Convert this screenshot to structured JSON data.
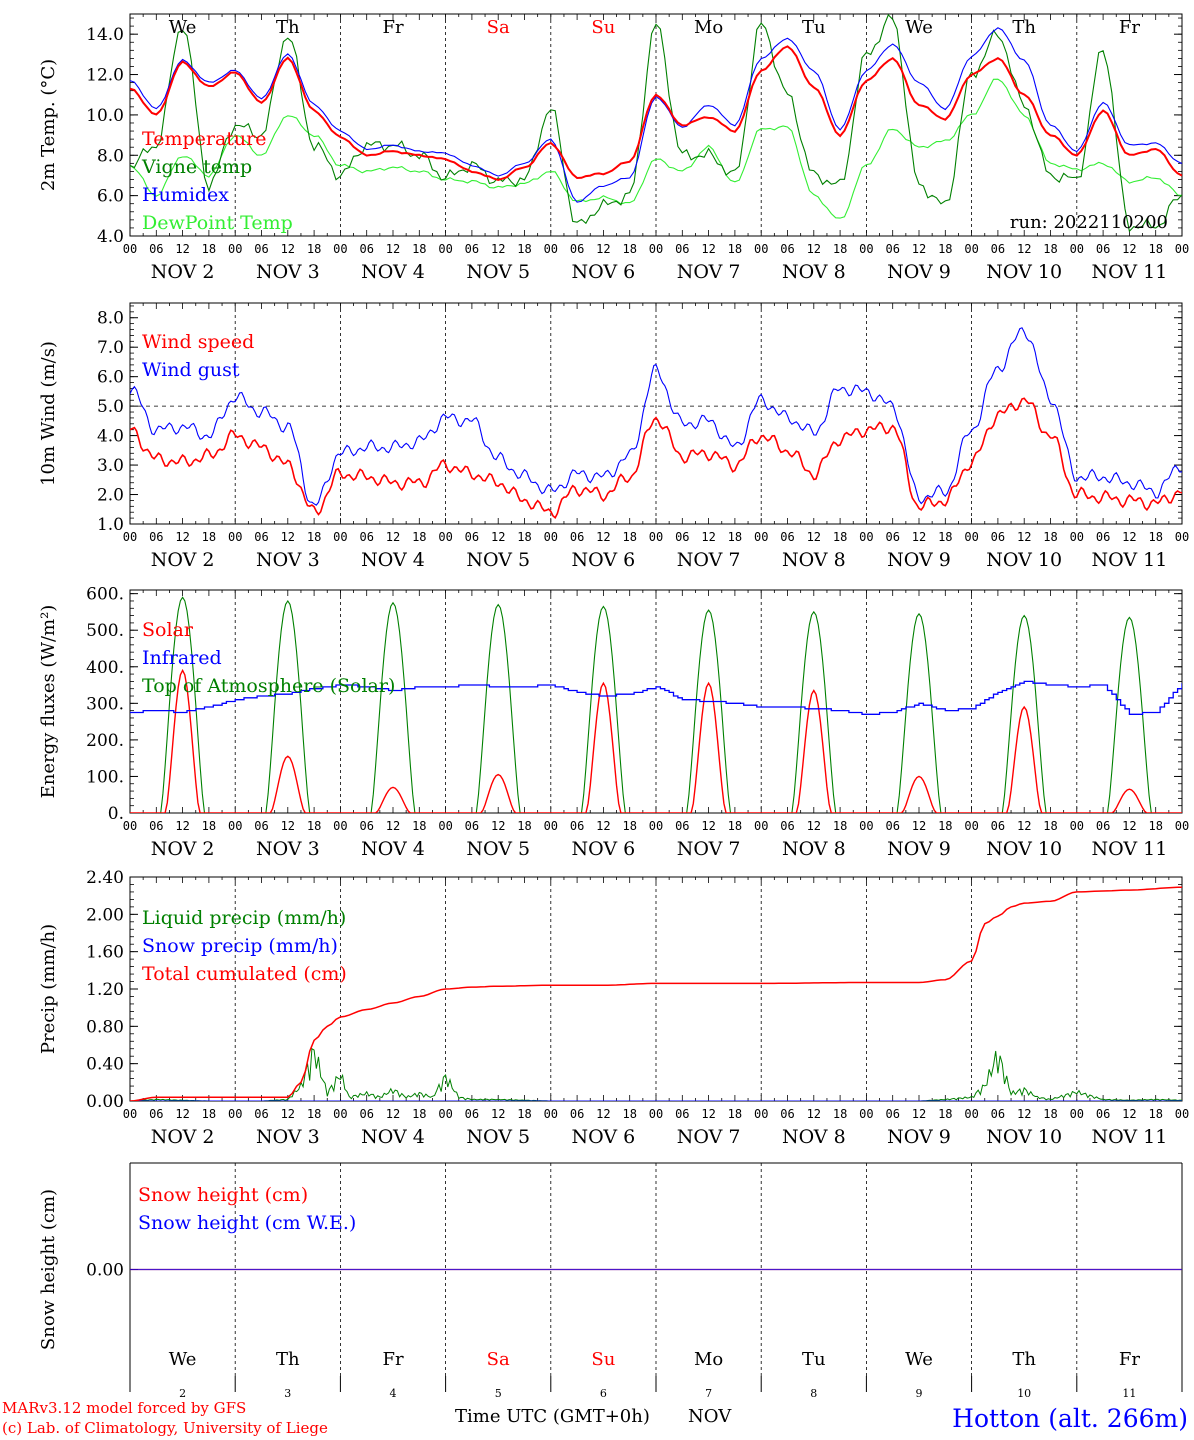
{
  "colors": {
    "temperature": "#ff0000",
    "vigne": "#008000",
    "humidex": "#0000ff",
    "dewpoint": "#33ee33",
    "wind_speed": "#ff0000",
    "wind_gust": "#0000ff",
    "solar": "#ff0000",
    "infrared": "#0000ff",
    "toa": "#008000",
    "liquid": "#008000",
    "snowprecip": "#0000ff",
    "total": "#ff0000",
    "snow_cm": "#ff0000",
    "snow_we": "#0000ff",
    "weekday": "#000000",
    "weekend": "#ff0000",
    "station": "#0000ff",
    "credits": "#ff0000"
  },
  "days": {
    "weekday_labels": [
      "We",
      "Th",
      "Fr",
      "Sa",
      "Su",
      "Mo",
      "Tu",
      "We",
      "Th",
      "Fr"
    ],
    "weekend_flags": [
      false,
      false,
      false,
      true,
      true,
      false,
      false,
      false,
      false,
      false
    ],
    "date_labels": [
      "NOV  2",
      "NOV  3",
      "NOV  4",
      "NOV  5",
      "NOV  6",
      "NOV  7",
      "NOV  8",
      "NOV  9",
      "NOV 10",
      "NOV 11"
    ],
    "day_numbers": [
      "2",
      "3",
      "4",
      "5",
      "6",
      "7",
      "8",
      "9",
      "10",
      "11"
    ],
    "hour_ticks": [
      "00",
      "06",
      "12",
      "18"
    ],
    "final_tick": "00"
  },
  "footer": {
    "credit_line1": "MARv3.12 model forced by GFS",
    "credit_line2": "(c) Lab. of Climatology, University of Liege",
    "xaxis_label": "Time UTC (GMT+0h)",
    "month": "NOV",
    "station": "Hotton (alt. 266m)"
  },
  "chart_data": [
    {
      "type": "line",
      "ylabel": "2m Temp. (°C)",
      "ylim": [
        4.0,
        15.0
      ],
      "yticks": [
        "4.0",
        "6.0",
        "8.0",
        "10.0",
        "12.0",
        "14.0"
      ],
      "yticks_values": [
        4,
        6,
        8,
        10,
        12,
        14
      ],
      "annotation": "run: 2022110200",
      "x_hours": [
        0,
        6,
        12,
        18,
        24,
        30,
        36,
        42,
        48,
        54,
        60,
        66,
        72,
        78,
        84,
        90,
        96,
        102,
        108,
        114,
        120,
        126,
        132,
        138,
        144,
        150,
        156,
        162,
        168,
        174,
        180,
        186,
        192,
        198,
        204,
        210,
        216,
        222,
        228,
        234,
        240
      ],
      "series": [
        {
          "name": "Temperature",
          "color_key": "temperature",
          "values": [
            11.3,
            10.0,
            12.6,
            11.4,
            12.1,
            10.6,
            12.8,
            10.2,
            8.9,
            8.0,
            8.2,
            8.0,
            7.8,
            7.2,
            6.8,
            7.4,
            8.6,
            6.9,
            7.1,
            7.7,
            11.0,
            9.5,
            9.9,
            9.2,
            12.2,
            13.4,
            11.4,
            9.0,
            11.7,
            12.8,
            10.5,
            9.8,
            12.0,
            12.8,
            11.0,
            9.0,
            8.0,
            10.2,
            8.0,
            8.3,
            7.0
          ]
        },
        {
          "name": "Vigne temp",
          "color_key": "vigne",
          "values": [
            7.5,
            8.5,
            14.5,
            6.5,
            9.5,
            9.0,
            14.0,
            8.5,
            7.0,
            8.5,
            8.5,
            8.0,
            6.9,
            7.5,
            6.7,
            6.8,
            10.3,
            4.5,
            5.5,
            6.0,
            14.5,
            8.0,
            8.0,
            7.0,
            14.5,
            11.0,
            7.0,
            6.5,
            13.0,
            14.8,
            6.5,
            5.5,
            12.0,
            14.0,
            10.5,
            7.0,
            6.8,
            13.3,
            4.5,
            4.5,
            6.0
          ]
        },
        {
          "name": "Humidex",
          "color_key": "humidex",
          "values": [
            11.7,
            10.3,
            12.7,
            11.6,
            12.2,
            10.8,
            13.0,
            10.5,
            9.2,
            8.3,
            8.5,
            8.2,
            8.1,
            7.5,
            7.0,
            7.6,
            8.8,
            5.7,
            6.5,
            6.9,
            10.9,
            9.4,
            10.5,
            9.5,
            12.8,
            13.8,
            12.2,
            9.3,
            12.2,
            13.5,
            11.6,
            10.3,
            12.9,
            14.3,
            12.7,
            9.5,
            8.2,
            10.6,
            8.5,
            8.6,
            7.6
          ]
        },
        {
          "name": "DewPoint Temp",
          "color_key": "dewpoint",
          "values": [
            7.5,
            6.0,
            8.0,
            7.0,
            9.0,
            8.0,
            10.0,
            9.0,
            7.5,
            7.2,
            7.4,
            7.2,
            6.8,
            6.7,
            6.4,
            6.6,
            7.2,
            5.7,
            5.9,
            5.6,
            7.8,
            7.2,
            8.4,
            6.6,
            9.3,
            9.4,
            6.0,
            4.8,
            7.5,
            9.3,
            8.4,
            8.7,
            10.0,
            11.8,
            10.0,
            7.6,
            7.3,
            7.6,
            6.7,
            6.9,
            6.0
          ]
        }
      ]
    },
    {
      "type": "line",
      "ylabel": "10m Wind (m/s)",
      "ylim": [
        1.0,
        8.5
      ],
      "yticks": [
        "1.0",
        "2.0",
        "3.0",
        "4.0",
        "5.0",
        "6.0",
        "7.0",
        "8.0"
      ],
      "yticks_values": [
        1,
        2,
        3,
        4,
        5,
        6,
        7,
        8
      ],
      "reference_line": 5.0,
      "x_hours": [
        0,
        6,
        12,
        18,
        24,
        30,
        36,
        42,
        48,
        54,
        60,
        66,
        72,
        78,
        84,
        90,
        96,
        102,
        108,
        114,
        120,
        126,
        132,
        138,
        144,
        150,
        156,
        162,
        168,
        174,
        180,
        186,
        192,
        198,
        204,
        210,
        216,
        222,
        228,
        234,
        240
      ],
      "series": [
        {
          "name": "Wind speed",
          "color_key": "wind_speed",
          "values": [
            4.2,
            3.2,
            3.1,
            3.3,
            4.0,
            3.6,
            3.0,
            1.4,
            2.7,
            2.6,
            2.4,
            2.4,
            3.0,
            2.7,
            2.4,
            1.8,
            1.4,
            2.2,
            2.0,
            2.6,
            4.6,
            3.3,
            3.4,
            3.0,
            4.0,
            3.5,
            2.7,
            3.9,
            4.2,
            4.3,
            1.6,
            1.8,
            3.1,
            4.7,
            5.2,
            4.0,
            2.0,
            1.9,
            1.8,
            1.7,
            2.1
          ]
        },
        {
          "name": "Wind gust",
          "color_key": "wind_gust",
          "values": [
            5.6,
            4.2,
            4.3,
            4.0,
            5.3,
            4.8,
            4.3,
            1.6,
            3.4,
            3.6,
            3.6,
            3.8,
            4.6,
            4.5,
            3.2,
            2.6,
            2.1,
            2.7,
            2.6,
            3.3,
            6.2,
            4.4,
            4.5,
            3.6,
            5.2,
            4.6,
            4.1,
            5.6,
            5.5,
            5.0,
            1.9,
            2.1,
            4.2,
            6.3,
            7.6,
            5.3,
            2.6,
            2.6,
            2.4,
            2.1,
            3.0
          ]
        }
      ]
    },
    {
      "type": "line",
      "ylabel": "Energy fluxes (W/m²)",
      "ylim": [
        0,
        610
      ],
      "yticks": [
        "0.",
        "100.",
        "200.",
        "300.",
        "400.",
        "500.",
        "600."
      ],
      "yticks_values": [
        0,
        100,
        200,
        300,
        400,
        500,
        600
      ],
      "series": [
        {
          "name": "Solar",
          "color_key": "solar",
          "day_peaks": [
            390,
            155,
            70,
            105,
            355,
            355,
            335,
            100,
            290,
            65
          ]
        },
        {
          "name": "Infrared",
          "color_key": "infrared",
          "x_hours": [
            0,
            6,
            12,
            18,
            24,
            30,
            36,
            42,
            48,
            54,
            60,
            66,
            72,
            78,
            84,
            90,
            96,
            102,
            108,
            114,
            120,
            126,
            132,
            138,
            144,
            150,
            156,
            162,
            168,
            174,
            180,
            186,
            192,
            198,
            204,
            210,
            216,
            222,
            228,
            234,
            240
          ],
          "values": [
            275,
            280,
            275,
            290,
            310,
            320,
            325,
            340,
            350,
            345,
            335,
            345,
            345,
            350,
            345,
            345,
            350,
            330,
            320,
            325,
            345,
            310,
            305,
            300,
            290,
            290,
            285,
            280,
            270,
            275,
            300,
            280,
            285,
            330,
            360,
            350,
            345,
            350,
            270,
            275,
            355
          ]
        },
        {
          "name": "Top of Atmosphere (Solar)",
          "color_key": "toa",
          "day_peaks": [
            590,
            580,
            575,
            570,
            565,
            555,
            550,
            545,
            540,
            535
          ]
        }
      ]
    },
    {
      "type": "line",
      "ylabel": "Precip (mm/h)",
      "ylim": [
        0,
        2.4
      ],
      "yticks": [
        "0.00",
        "0.40",
        "0.80",
        "1.20",
        "1.60",
        "2.00",
        "2.40"
      ],
      "yticks_values": [
        0,
        0.4,
        0.8,
        1.2,
        1.6,
        2.0,
        2.4
      ],
      "series": [
        {
          "name": "Liquid precip (mm/h)",
          "color_key": "liquid",
          "x_hours": [
            0,
            6,
            12,
            18,
            24,
            30,
            36,
            39,
            42,
            45,
            48,
            50,
            54,
            57,
            60,
            63,
            66,
            69,
            72,
            75,
            78,
            84,
            90,
            96,
            108,
            132,
            168,
            180,
            186,
            192,
            195,
            198,
            201,
            204,
            207,
            210,
            216,
            222,
            228,
            234,
            240
          ],
          "values": [
            0,
            0.02,
            0.01,
            0,
            0,
            0,
            0.02,
            0.2,
            0.66,
            0.1,
            0.35,
            0.05,
            0.1,
            0.05,
            0.15,
            0.05,
            0.1,
            0.05,
            0.32,
            0.05,
            0.02,
            0.02,
            0.01,
            0,
            0,
            0,
            0,
            0,
            0.02,
            0.05,
            0.2,
            0.62,
            0.1,
            0.15,
            0.05,
            0.02,
            0.12,
            0.02,
            0.01,
            0.02,
            0.01
          ]
        },
        {
          "name": "Snow precip (mm/h)",
          "color_key": "snowprecip",
          "x_hours": [
            0,
            240
          ],
          "values": [
            0,
            0
          ]
        },
        {
          "name": "Total cumulated (cm)",
          "color_key": "total",
          "x_hours": [
            0,
            6,
            36,
            39,
            42,
            45,
            48,
            54,
            60,
            66,
            72,
            78,
            84,
            96,
            108,
            120,
            132,
            144,
            168,
            180,
            186,
            192,
            195,
            198,
            201,
            204,
            210,
            216,
            222,
            228,
            240
          ],
          "values": [
            0,
            0.04,
            0.04,
            0.2,
            0.65,
            0.8,
            0.9,
            0.98,
            1.05,
            1.12,
            1.2,
            1.22,
            1.23,
            1.24,
            1.24,
            1.26,
            1.26,
            1.26,
            1.27,
            1.27,
            1.3,
            1.5,
            1.9,
            1.98,
            2.08,
            2.12,
            2.14,
            2.24,
            2.25,
            2.26,
            2.29
          ]
        }
      ]
    },
    {
      "type": "line",
      "ylabel": "Snow height (cm)",
      "ylim": [
        -1,
        1
      ],
      "yticks": [
        "0.00"
      ],
      "yticks_values": [
        0
      ],
      "series": [
        {
          "name": "Snow height (cm)",
          "color_key": "snow_cm",
          "x_hours": [
            0,
            240
          ],
          "values": [
            0,
            0
          ]
        },
        {
          "name": "Snow height (cm W.E.)",
          "color_key": "snow_we",
          "x_hours": [
            0,
            240
          ],
          "values": [
            0,
            0
          ]
        }
      ]
    }
  ]
}
